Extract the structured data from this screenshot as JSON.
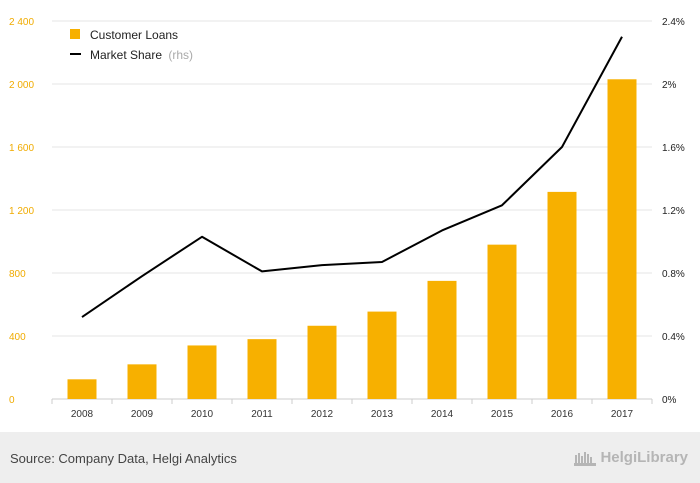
{
  "chart_data": {
    "type": "bar",
    "categories": [
      "2008",
      "2009",
      "2010",
      "2011",
      "2012",
      "2013",
      "2014",
      "2015",
      "2016",
      "2017"
    ],
    "series": [
      {
        "name": "Customer Loans",
        "type": "bar",
        "axis": "left",
        "color": "#f7b000",
        "values": [
          125,
          220,
          340,
          380,
          465,
          555,
          750,
          980,
          1315,
          2030
        ]
      },
      {
        "name": "Market Share",
        "type": "line",
        "axis": "right",
        "color": "#000000",
        "values": [
          0.52,
          0.78,
          1.03,
          0.81,
          0.85,
          0.87,
          1.07,
          1.23,
          1.6,
          2.3
        ]
      }
    ],
    "ylim_left": [
      0,
      2400
    ],
    "yticks_left": [
      "0",
      "400",
      "800",
      "1 200",
      "1 600",
      "2 000",
      "2 400"
    ],
    "ylim_right": [
      0,
      2.4
    ],
    "yticks_right": [
      "0%",
      "0.4%",
      "0.8%",
      "1.2%",
      "1.6%",
      "2%",
      "2.4%"
    ],
    "grid": true,
    "legend_position": "top-left"
  },
  "legend": {
    "bar_label": "Customer Loans",
    "line_label": "Market Share",
    "line_hint": "(rhs)"
  },
  "footer": {
    "source": "Source: Company Data, Helgi Analytics",
    "brand": "HelgiLibrary"
  }
}
